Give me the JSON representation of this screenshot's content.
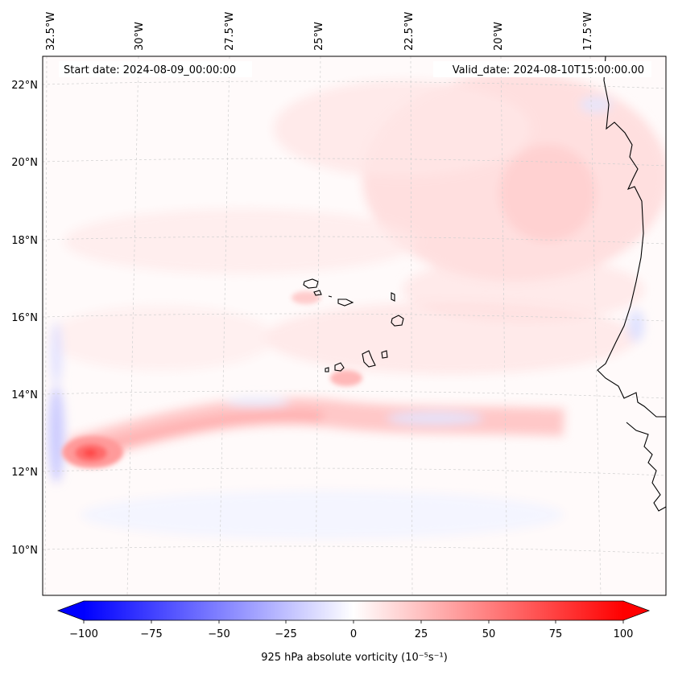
{
  "figure": {
    "start_label": "Start date: 2024-08-09_00:00:00",
    "valid_label": "Valid_date: 2024-08-10T15:00:00.00"
  },
  "map": {
    "lon_labels": [
      "32.5°W",
      "30°W",
      "27.5°W",
      "25°W",
      "22.5°W",
      "20°W",
      "17.5°W"
    ],
    "lat_labels": [
      "22°N",
      "20°N",
      "18°N",
      "16°N",
      "14°N",
      "12°N",
      "10°N"
    ],
    "gridlines": true,
    "coastline_color": "#000000",
    "features": [
      "Cape Verde islands",
      "West African coast"
    ],
    "vorticity_max_location": "near 31.5°W, 12.5°N"
  },
  "colorbar": {
    "label": "925 hPa absolute vorticity (10⁻⁵s⁻¹)",
    "ticks": [
      "−100",
      "−75",
      "−50",
      "−25",
      "0",
      "25",
      "50",
      "75",
      "100"
    ],
    "min": -100,
    "max": 100,
    "colormap": "bwr",
    "extend": "both"
  },
  "colors": {
    "negative": "#0000ff",
    "neutral": "#ffffff",
    "positive": "#ff0000",
    "gridline": "#cccccc"
  }
}
